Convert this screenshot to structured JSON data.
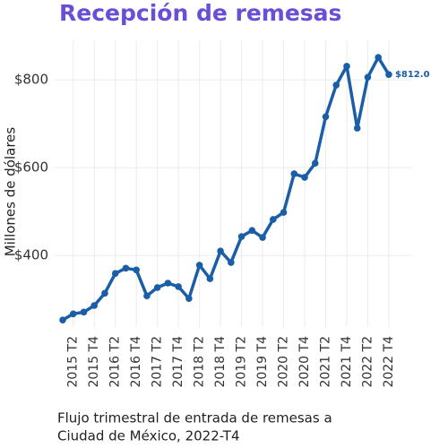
{
  "chart_data": {
    "type": "line",
    "title": "Recepción de remesas",
    "y_label": "Millones de dólares",
    "caption": [
      "Flujo trimestral de entrada de remesas a",
      "Ciudad de México, 2022-T4"
    ],
    "categories": [
      null,
      "2015 T2",
      null,
      "2015 T4",
      null,
      "2016 T2",
      null,
      "2016 T4",
      null,
      "2017 T2",
      null,
      "2017 T4",
      null,
      "2018 T2",
      null,
      "2018 T4",
      null,
      "2019 T2",
      null,
      "2019 T4",
      null,
      "2020 T2",
      null,
      "2020 T4",
      null,
      "2021 T2",
      null,
      "2021 T4",
      null,
      "2022 T2",
      null,
      "2022 T4"
    ],
    "values": [
      253,
      267,
      271,
      286,
      314,
      359,
      371,
      367,
      308,
      327,
      337,
      329,
      302,
      378,
      347,
      410,
      384,
      443,
      457,
      441,
      482,
      498,
      586,
      578,
      610,
      716,
      788,
      831,
      690,
      806,
      851,
      812
    ],
    "value_labels": [
      null,
      null,
      null,
      null,
      null,
      null,
      null,
      null,
      null,
      null,
      null,
      null,
      null,
      null,
      null,
      null,
      null,
      null,
      null,
      null,
      null,
      null,
      null,
      null,
      null,
      null,
      null,
      null,
      null,
      null,
      null,
      "$812.0"
    ],
    "color": "#1a5ea8",
    "ylim": [
      237,
      890
    ],
    "yticks": [
      {
        "value": 400,
        "label": "$400"
      },
      {
        "value": 600,
        "label": "$600"
      },
      {
        "value": 800,
        "label": "$800"
      }
    ],
    "grid": true
  }
}
